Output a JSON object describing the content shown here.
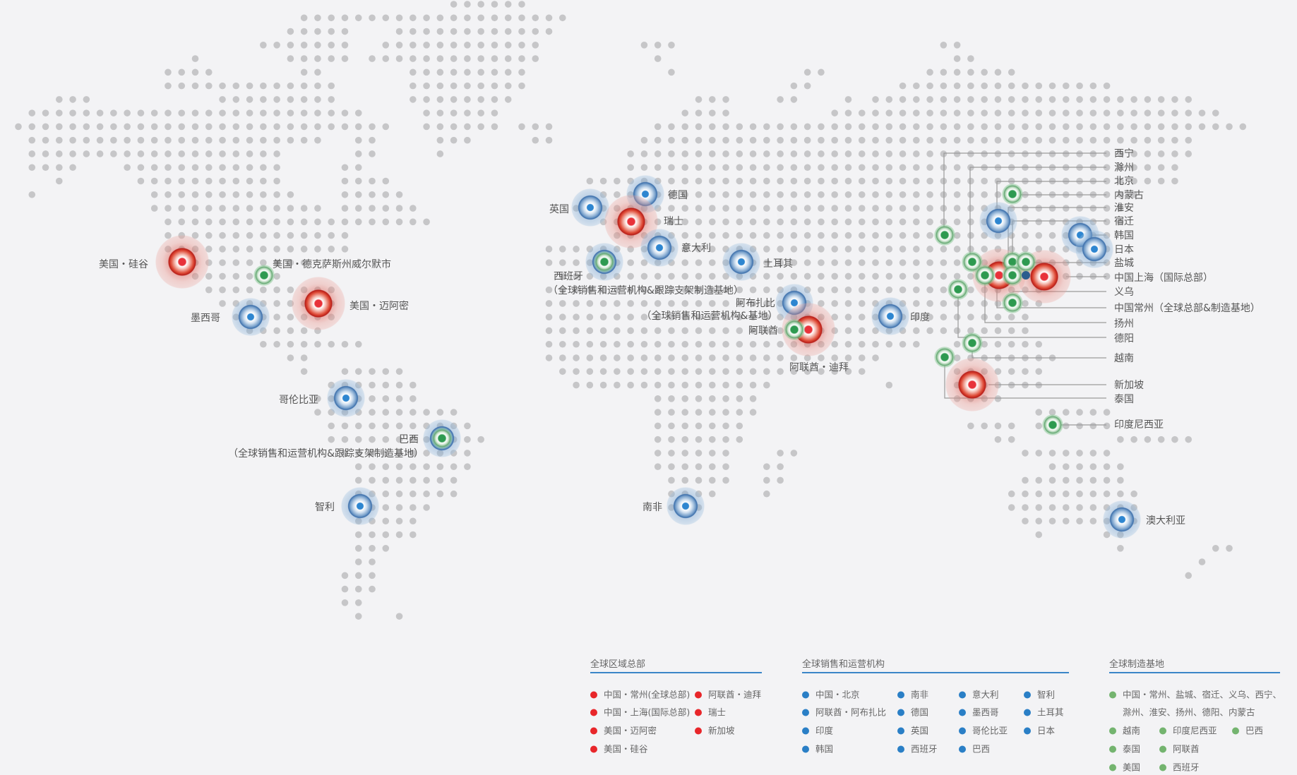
{
  "colors": {
    "hq": "#e8262a",
    "sales": "#2a7fc6",
    "manufacturing": "#74b46f",
    "dot": "#c6c6c8",
    "background": "#f3f3f5"
  },
  "map": {
    "labels": {
      "silicon_valley": "美国・硅谷",
      "texas": "美国・德克萨斯州威尔默市",
      "miami": "美国・迈阿密",
      "mexico": "墨西哥",
      "colombia": "哥伦比亚",
      "brazil": "巴西",
      "brazil_note": "（全球销售和运营机构&跟踪支架制造基地）",
      "chile": "智利",
      "uk": "英国",
      "germany": "德国",
      "switzerland": "瑞士",
      "italy": "意大利",
      "spain": "西班牙",
      "spain_note": "（全球销售和运营机构&跟踪支架制造基地）",
      "turkey": "土耳其",
      "abu_dhabi": "阿布扎比",
      "abu_dhabi_note": "（全球销售和运营机构&基地）",
      "uae": "阿联酋",
      "dubai": "阿联酋・迪拜",
      "india": "印度",
      "south_africa": "南非",
      "australia": "澳大利亚"
    },
    "asia_labels": [
      "西宁",
      "滁州",
      "北京",
      "内蒙古",
      "淮安",
      "宿迁",
      "韩国",
      "日本",
      "盐城",
      "中国上海（国际总部）",
      "义乌",
      "中国常州（全球总部&制造基地）",
      "扬州",
      "德阳",
      "越南",
      "新加坡",
      "泰国",
      "印度尼西亚"
    ]
  },
  "legend": {
    "hq": {
      "title": "全球区域总部",
      "items": [
        "中国・常州(全球总部)",
        "中国・上海(国际总部)",
        "美国・迈阿密",
        "美国・硅谷",
        "阿联酋・迪拜",
        "瑞士",
        "新加坡"
      ]
    },
    "sales": {
      "title": "全球销售和运营机构",
      "items": [
        "中国・北京",
        "阿联酋・阿布扎比",
        "印度",
        "韩国",
        "南非",
        "德国",
        "英国",
        "西班牙",
        "意大利",
        "墨西哥",
        "哥伦比亚",
        "巴西",
        "智利",
        "土耳其",
        "日本"
      ]
    },
    "manufacturing": {
      "title": "全球制造基地",
      "items": [
        "中国・常州、盐城、宿迁、义乌、西宁、",
        "滁州、淮安、扬州、德阳、内蒙古",
        "越南",
        "印度尼西亚",
        "巴西",
        "泰国",
        "阿联酋",
        "美国",
        "西班牙"
      ]
    }
  }
}
